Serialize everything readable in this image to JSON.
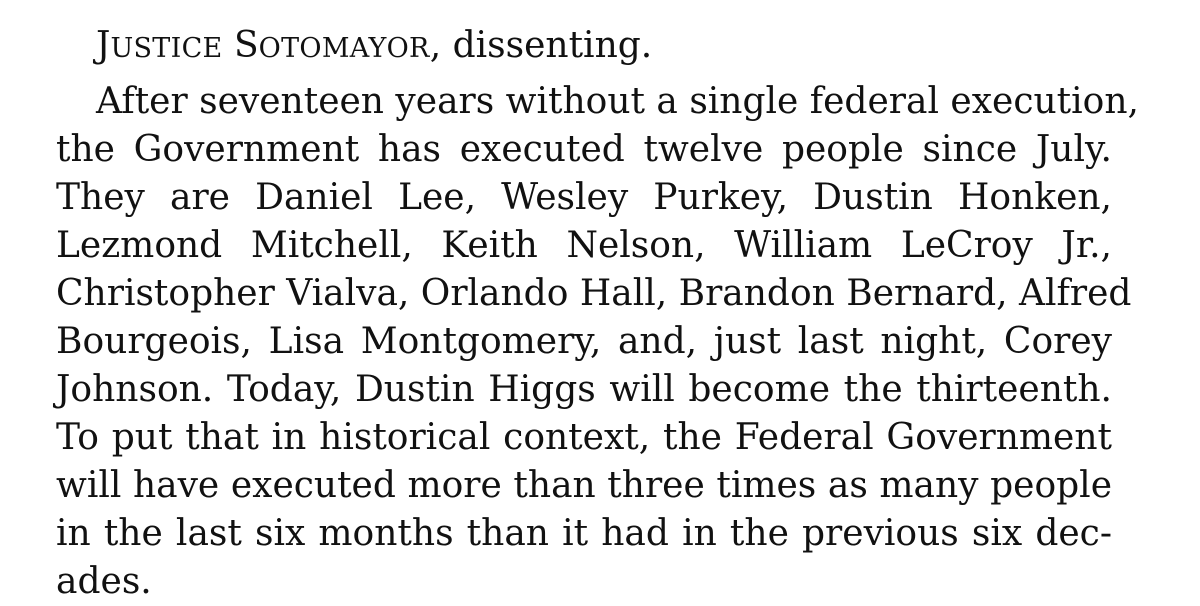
{
  "heading": {
    "name_initial_1": "J",
    "name_rest_1": "USTICE",
    "name_initial_2": "S",
    "name_rest_2": "OTOMAYOR",
    "suffix": ", dissenting."
  },
  "paragraph": {
    "lines": [
      "After seventeen years without a single federal execution,",
      "the Government has executed twelve people since July.",
      "They are Daniel Lee, Wesley Purkey, Dustin Honken,",
      "Lezmond Mitchell, Keith Nelson, William LeCroy Jr.,",
      "Christopher Vialva, Orlando Hall, Brandon Bernard, Alfred",
      "Bourgeois, Lisa Montgomery, and, just last night, Corey",
      "Johnson.  Today, Dustin Higgs will become the thirteenth.",
      "To put that in historical context, the Federal Government",
      "will have executed more than three times as many people",
      "in the last six months than it had in the previous six dec-",
      "ades."
    ]
  }
}
